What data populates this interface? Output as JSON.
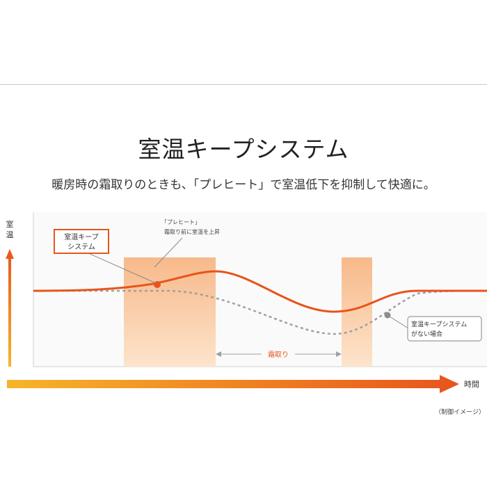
{
  "page": {
    "title": "室温キープシステム",
    "subtitle": "暖房時の霜取りのときも、「プレヒート」で室温低下を抑制して快適に。"
  },
  "diagram": {
    "y_axis_label": [
      "室",
      "温"
    ],
    "x_axis_label": "時間",
    "callout_system": [
      "室温キープ",
      "システム"
    ],
    "preheat_label": [
      "「プレヒート」",
      "霜取り前に室温を上昇"
    ],
    "defrost_label": "霜取り",
    "callout_no_system": [
      "室温キープシステム",
      "がない場合"
    ],
    "caption": "（制御イメージ）"
  },
  "colors": {
    "orange": "#e8541c",
    "band": "#f8c9a0",
    "dashed": "#a0a0a0"
  }
}
